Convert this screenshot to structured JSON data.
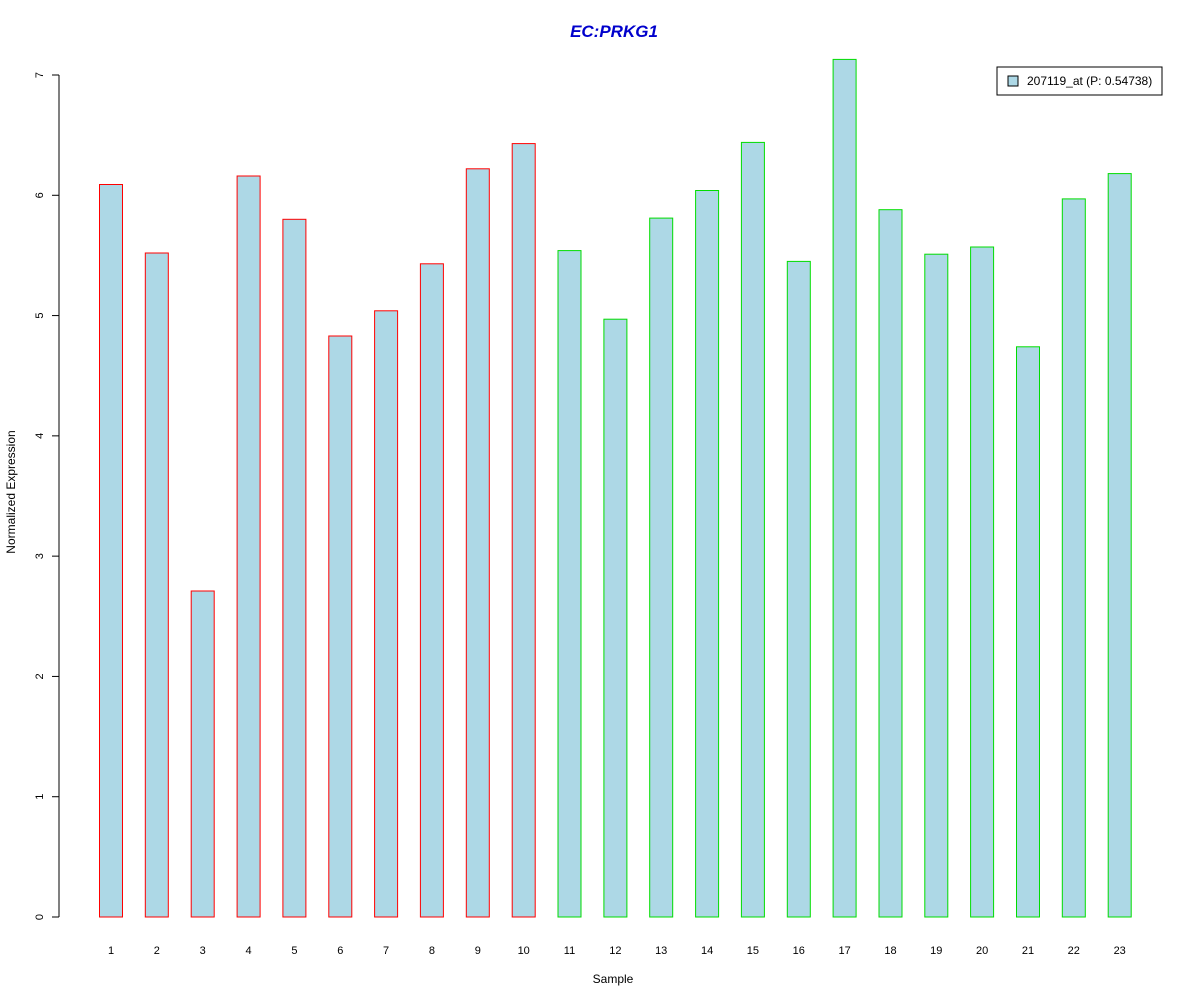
{
  "chart_data": {
    "type": "bar",
    "title": "EC:PRKG1",
    "xlabel": "Sample",
    "ylabel": "Normalized Expression",
    "categories": [
      "1",
      "2",
      "3",
      "4",
      "5",
      "6",
      "7",
      "8",
      "9",
      "10",
      "11",
      "12",
      "13",
      "14",
      "15",
      "16",
      "17",
      "18",
      "19",
      "20",
      "21",
      "22",
      "23"
    ],
    "series": [
      {
        "name": "207119_at (P: 0.54738)",
        "values": [
          6.09,
          5.52,
          2.71,
          6.16,
          5.8,
          4.83,
          5.04,
          5.43,
          6.22,
          6.43,
          5.54,
          4.97,
          5.81,
          6.04,
          6.44,
          5.45,
          7.13,
          5.88,
          5.51,
          5.57,
          4.74,
          5.97,
          6.18
        ]
      }
    ],
    "group_1_samples": [
      "1",
      "2",
      "3",
      "4",
      "5",
      "6",
      "7",
      "8",
      "9",
      "10"
    ],
    "group_2_samples": [
      "11",
      "12",
      "13",
      "14",
      "15",
      "16",
      "17",
      "18",
      "19",
      "20",
      "21",
      "22",
      "23"
    ],
    "ylim": [
      0,
      7
    ],
    "yticks": [
      0,
      1,
      2,
      3,
      4,
      5,
      6,
      7
    ],
    "grid": false,
    "legend_position": "top-right",
    "colors": {
      "title": "#0000cc",
      "bar_fill": "#add8e6",
      "group_1_border": "#ff0000",
      "group_2_border": "#00dd00",
      "axis": "#000000"
    }
  }
}
